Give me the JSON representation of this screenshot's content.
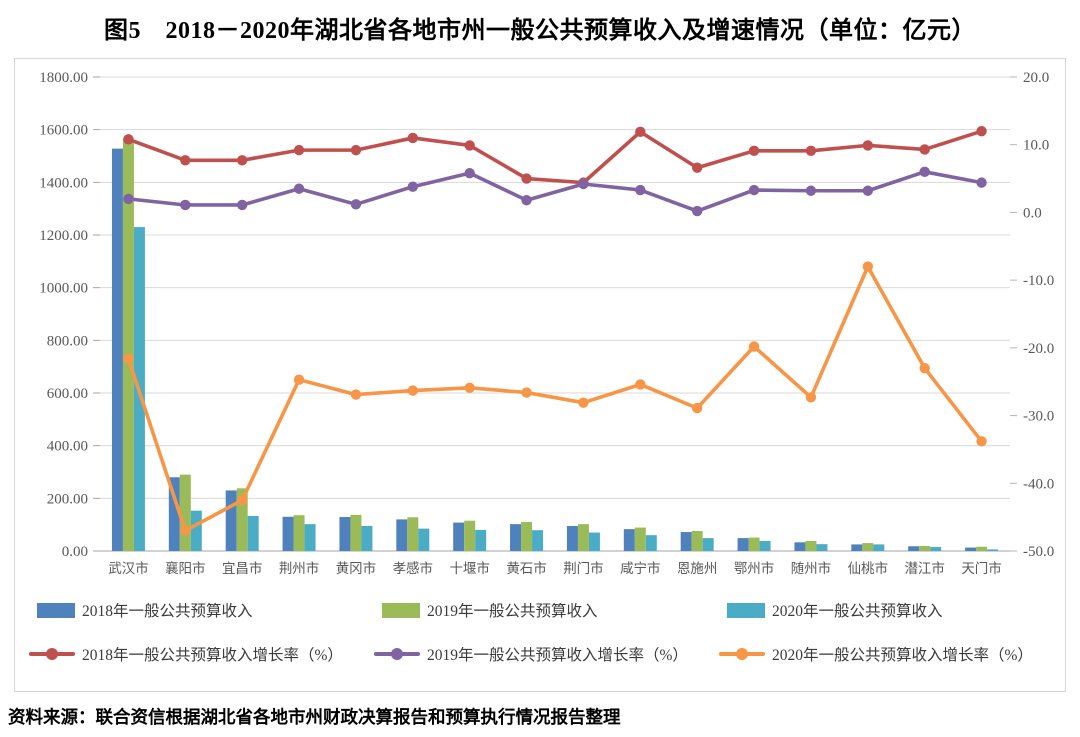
{
  "title": "图5　2018－2020年湖北省各地市州一般公共预算收入及增速情况（单位：亿元）",
  "source": "资料来源：联合资信根据湖北省各地市州财政决算报告和预算执行情况报告整理",
  "chart_data": {
    "type": "bar",
    "subtype": "grouped-bars-with-lines",
    "unit": "亿元",
    "grid": true,
    "legend_position": "bottom",
    "categories": [
      "武汉市",
      "襄阳市",
      "宜昌市",
      "荆州市",
      "黄冈市",
      "孝感市",
      "十堰市",
      "黄石市",
      "荆门市",
      "咸宁市",
      "恩施州",
      "鄂州市",
      "随州市",
      "仙桃市",
      "潜江市",
      "天门市"
    ],
    "bar_series": [
      {
        "name": "2018年一般公共预算收入",
        "color": "#4F81BD",
        "axis": "left",
        "values": [
          1528,
          280,
          230,
          130,
          129,
          120,
          108,
          102,
          95,
          83,
          72,
          49,
          33,
          25,
          18,
          13
        ]
      },
      {
        "name": "2019年一般公共预算收入",
        "color": "#9BBB59",
        "axis": "left",
        "values": [
          1564,
          290,
          238,
          136,
          137,
          128,
          115,
          110,
          102,
          89,
          76,
          51,
          38,
          30,
          19,
          16
        ]
      },
      {
        "name": "2020年一般公共预算收入",
        "color": "#4BACC6",
        "axis": "left",
        "values": [
          1230,
          153,
          133,
          102,
          95,
          85,
          80,
          79,
          70,
          60,
          49,
          38,
          26,
          25,
          15,
          6
        ]
      }
    ],
    "line_series": [
      {
        "name": "2018年一般公共预算收入增长率（%）",
        "color": "#C0504D",
        "axis": "right",
        "values": [
          10.8,
          7.7,
          7.7,
          9.2,
          9.2,
          11.0,
          9.9,
          5.0,
          4.4,
          11.9,
          6.6,
          9.1,
          9.1,
          9.9,
          9.3,
          12.0
        ]
      },
      {
        "name": "2019年一般公共预算收入增长率（%）",
        "color": "#8064A2",
        "axis": "right",
        "values": [
          2.0,
          1.1,
          1.1,
          3.5,
          1.2,
          3.8,
          5.8,
          1.8,
          4.2,
          3.3,
          0.2,
          3.3,
          3.2,
          3.2,
          6.0,
          4.4
        ]
      },
      {
        "name": "2020年一般公共预算收入增长率（%）",
        "color": "#F79646",
        "axis": "right",
        "values": [
          -21.6,
          -47.0,
          -42.5,
          -24.7,
          -26.9,
          -26.3,
          -25.9,
          -26.6,
          -28.1,
          -25.4,
          -28.9,
          -19.8,
          -27.3,
          -8.0,
          -23.0,
          -33.8
        ]
      }
    ],
    "left_axis": {
      "min": 0,
      "max": 1800,
      "step": 200,
      "tick_labels": [
        "0.00",
        "200.00",
        "400.00",
        "600.00",
        "800.00",
        "1000.00",
        "1200.00",
        "1400.00",
        "1600.00",
        "1800.00"
      ]
    },
    "right_axis": {
      "min": -50,
      "max": 20,
      "step": 10,
      "tick_labels": [
        "20.0",
        "10.0",
        "0.0",
        "-10.0",
        "-20.0",
        "-30.0",
        "-40.0",
        "-50.0"
      ]
    }
  }
}
